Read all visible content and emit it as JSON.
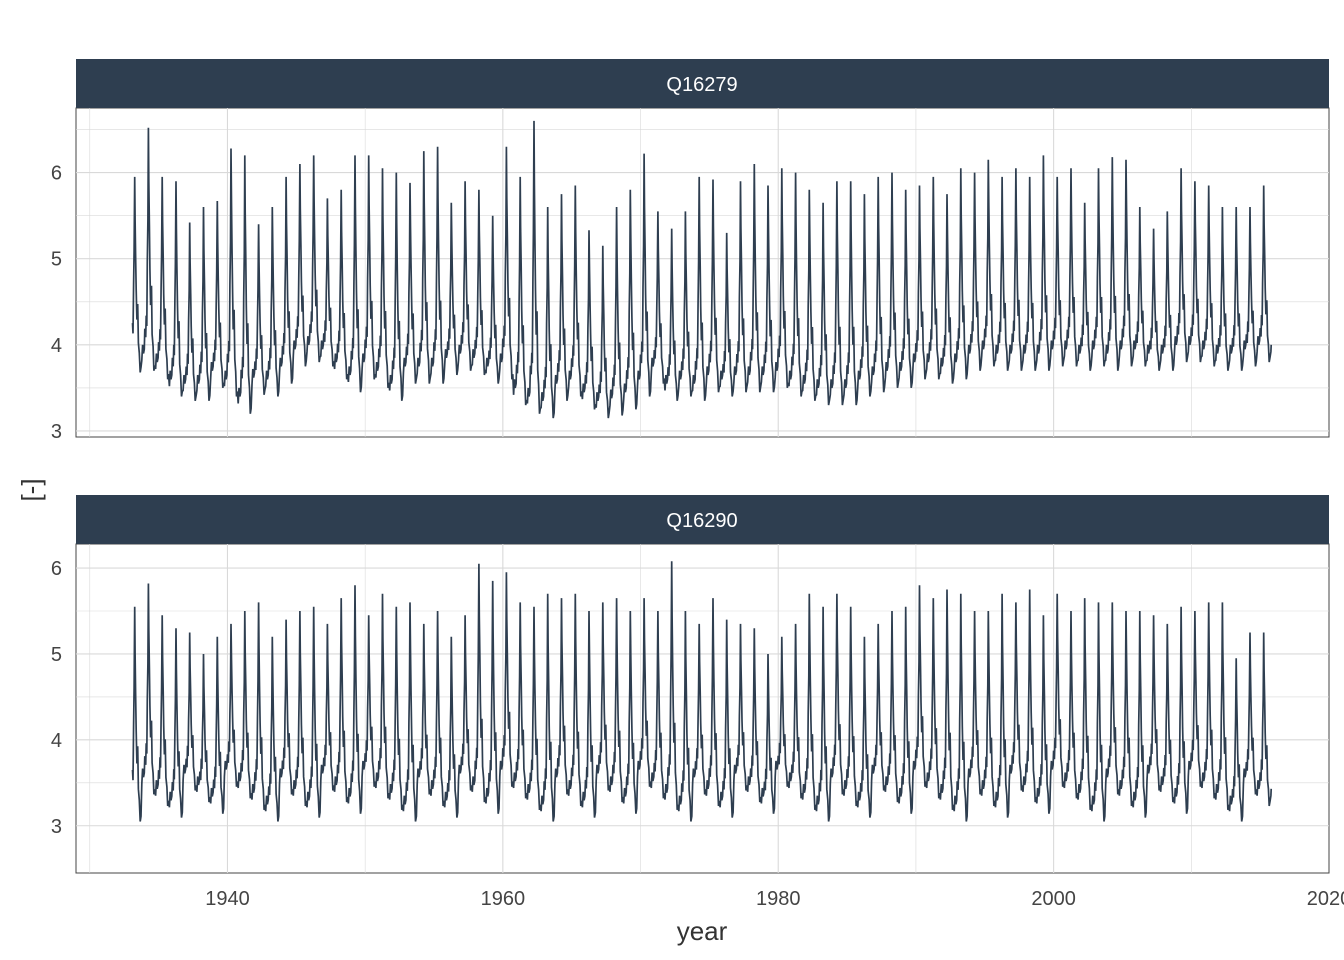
{
  "chart_data": {
    "type": "line",
    "xlabel": "year",
    "ylabel": "[-]",
    "x_ticks": [
      1940,
      1960,
      1980,
      2000,
      2020
    ],
    "xlim": [
      1929,
      2020
    ],
    "line_color": "#2E3E50",
    "strip_color": "#2E3E50",
    "grid": true,
    "x_start": 1933.1,
    "x_end": 2015.8,
    "panels": [
      {
        "title": "Q16279",
        "ylim": [
          2.93,
          6.75
        ],
        "y_ticks": [
          3,
          4,
          5,
          6
        ],
        "annual_maxima": [
          5.95,
          6.52,
          5.95,
          5.9,
          5.42,
          5.6,
          5.67,
          6.28,
          6.2,
          5.4,
          5.6,
          5.95,
          6.1,
          6.2,
          5.7,
          5.8,
          6.2,
          6.2,
          6.05,
          6.0,
          5.88,
          6.25,
          6.3,
          5.65,
          5.9,
          5.8,
          5.5,
          6.3,
          5.95,
          6.6,
          5.6,
          5.75,
          5.85,
          5.33,
          5.15,
          5.6,
          5.8,
          6.22,
          5.55,
          5.35,
          5.55,
          5.95,
          5.92,
          5.3,
          5.9,
          6.1,
          5.85,
          6.05,
          6.0,
          5.8,
          5.65,
          5.9,
          5.9,
          5.75,
          5.95,
          6.0,
          5.8,
          5.85,
          5.95,
          5.75,
          6.05,
          6.0,
          6.15,
          5.95,
          6.05,
          5.95,
          6.2,
          5.95,
          6.05,
          5.65,
          6.05,
          6.18,
          6.15,
          5.6,
          5.35,
          5.55,
          6.05,
          5.9,
          5.85,
          5.6,
          5.6,
          5.6,
          5.85
        ],
        "annual_minima": [
          3.68,
          3.7,
          3.6,
          3.4,
          3.35,
          3.35,
          3.5,
          3.4,
          3.2,
          3.42,
          3.4,
          3.55,
          3.75,
          3.8,
          3.75,
          3.6,
          3.45,
          3.6,
          3.5,
          3.35,
          3.55,
          3.55,
          3.55,
          3.65,
          3.7,
          3.65,
          3.55,
          3.6,
          3.3,
          3.2,
          3.15,
          3.35,
          3.4,
          3.25,
          3.15,
          3.18,
          3.25,
          3.4,
          3.55,
          3.35,
          3.4,
          3.35,
          3.45,
          3.4,
          3.45,
          3.45,
          3.45,
          3.5,
          3.4,
          3.35,
          3.3,
          3.3,
          3.3,
          3.4,
          3.45,
          3.5,
          3.5,
          3.6,
          3.6,
          3.55,
          3.6,
          3.7,
          3.75,
          3.7,
          3.7,
          3.7,
          3.7,
          3.75,
          3.75,
          3.7,
          3.75,
          3.7,
          3.75,
          3.75,
          3.7,
          3.7,
          3.8,
          3.8,
          3.75,
          3.7,
          3.7,
          3.75,
          3.8
        ]
      },
      {
        "title": "Q16290",
        "ylim": [
          2.45,
          6.28
        ],
        "y_ticks": [
          3,
          4,
          5,
          6
        ],
        "annual_maxima": [
          5.55,
          5.82,
          5.45,
          5.3,
          5.25,
          5.0,
          5.2,
          5.35,
          5.5,
          5.6,
          5.2,
          5.4,
          5.5,
          5.55,
          5.35,
          5.65,
          5.8,
          5.45,
          5.7,
          5.55,
          5.6,
          5.35,
          5.5,
          5.2,
          5.45,
          6.05,
          5.85,
          5.95,
          5.6,
          5.55,
          5.7,
          5.65,
          5.7,
          5.5,
          5.6,
          5.65,
          5.5,
          5.65,
          5.5,
          6.08,
          5.5,
          5.35,
          5.65,
          5.4,
          5.35,
          5.3,
          5.0,
          5.2,
          5.35,
          5.7,
          5.55,
          5.7,
          5.55,
          5.2,
          5.35,
          5.5,
          5.55,
          5.8,
          5.65,
          5.75,
          5.7,
          5.5,
          5.5,
          5.7,
          5.6,
          5.75,
          5.45,
          5.7,
          5.5,
          5.65,
          5.6,
          5.6,
          5.5,
          5.5,
          5.45,
          5.35,
          5.55,
          5.5,
          5.6,
          5.6,
          4.95,
          5.25,
          5.25
        ]
      }
    ]
  }
}
